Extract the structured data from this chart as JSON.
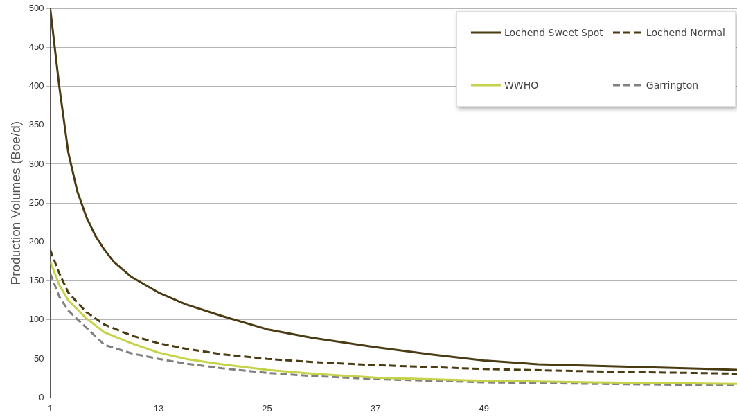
{
  "chart_data": {
    "type": "line",
    "ylabel": "Production Volumes (Boe/d)",
    "xlim": [
      1,
      77
    ],
    "xticks": [
      1,
      13,
      25,
      37,
      49
    ],
    "ylim": [
      0,
      500
    ],
    "yticks": [
      0,
      50,
      100,
      150,
      200,
      250,
      300,
      350,
      400,
      450,
      500
    ],
    "grid": "y",
    "legend": "top right",
    "marker": "none",
    "series": [
      {
        "name": "Lochend Sweet Spot",
        "color": "#4a3b12",
        "line_style": "solid",
        "x": [
          1,
          2,
          3,
          4,
          5,
          6,
          7,
          8,
          10,
          13,
          16,
          20,
          25,
          30,
          37,
          43,
          49,
          55,
          65,
          77
        ],
        "values": [
          500,
          400,
          315,
          265,
          232,
          208,
          190,
          175,
          155,
          135,
          120,
          105,
          88,
          77,
          65,
          56,
          48,
          43,
          40,
          36
        ]
      },
      {
        "name": "Lochend Normal",
        "color": "#4a3b12",
        "line_style": "dashed",
        "x": [
          1,
          2,
          3,
          5,
          7,
          10,
          13,
          16,
          20,
          25,
          30,
          37,
          49,
          61,
          77
        ],
        "values": [
          190,
          160,
          135,
          110,
          94,
          80,
          70,
          63,
          56,
          50,
          46,
          42,
          37,
          34,
          31
        ]
      },
      {
        "name": "WWHO",
        "color": "#c5d24a",
        "line_style": "solid",
        "x": [
          1,
          2,
          3,
          5,
          7,
          10,
          13,
          16,
          20,
          25,
          30,
          37,
          49,
          61,
          77
        ],
        "values": [
          175,
          145,
          125,
          102,
          84,
          70,
          58,
          50,
          43,
          36,
          31,
          26,
          22,
          20,
          18
        ]
      },
      {
        "name": "Garrington",
        "color": "#808080",
        "line_style": "dashed",
        "x": [
          1,
          2,
          3,
          5,
          7,
          10,
          13,
          16,
          20,
          25,
          30,
          37,
          49,
          61,
          77
        ],
        "values": [
          160,
          130,
          112,
          90,
          68,
          57,
          50,
          44,
          38,
          32,
          28,
          24,
          20,
          18,
          16
        ]
      }
    ]
  }
}
